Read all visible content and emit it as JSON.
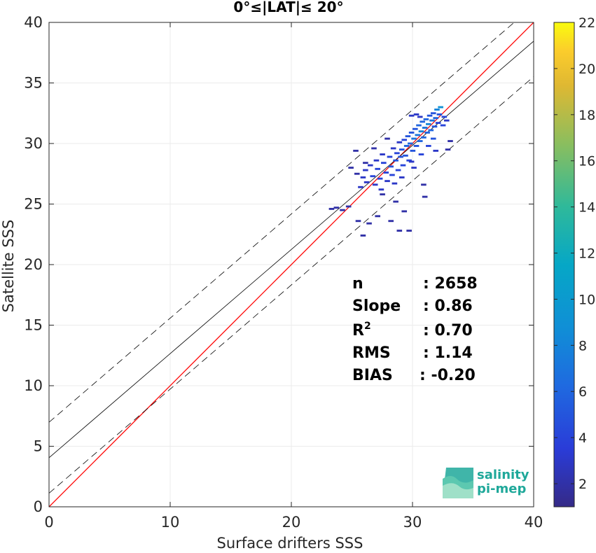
{
  "chart_data": {
    "type": "scatter",
    "title": "0°≤|LAT|≤ 20°",
    "xlabel": "Surface drifters SSS",
    "ylabel": "Satellite SSS",
    "xlim": [
      0,
      40
    ],
    "ylim": [
      0,
      40
    ],
    "xticks": [
      0,
      10,
      20,
      30,
      40
    ],
    "yticks": [
      0,
      5,
      10,
      15,
      20,
      25,
      30,
      35,
      40
    ],
    "grid": true,
    "colorbar": {
      "label": "",
      "range": [
        1,
        22
      ],
      "ticks": [
        2,
        4,
        6,
        8,
        10,
        12,
        14,
        16,
        18,
        20,
        22
      ],
      "colormap": "parula"
    },
    "lines": [
      {
        "name": "1:1",
        "slope": 1.0,
        "intercept": 0.0,
        "color": "#ff0000",
        "style": "solid"
      },
      {
        "name": "fit",
        "slope": 0.86,
        "intercept": 4.05,
        "color": "#000000",
        "style": "solid"
      },
      {
        "name": "fit_upper",
        "slope": 0.86,
        "intercept": 6.98,
        "color": "#000000",
        "style": "dashed"
      },
      {
        "name": "fit_lower",
        "slope": 0.86,
        "intercept": 1.12,
        "color": "#000000",
        "style": "dashed"
      }
    ],
    "density_points": [
      {
        "x": 23.2,
        "y": 24.6,
        "c": 2
      },
      {
        "x": 23.6,
        "y": 24.7,
        "c": 2
      },
      {
        "x": 24.1,
        "y": 24.5,
        "c": 2
      },
      {
        "x": 24.6,
        "y": 24.8,
        "c": 2
      },
      {
        "x": 25.8,
        "y": 22.4,
        "c": 2
      },
      {
        "x": 25.4,
        "y": 23.6,
        "c": 2
      },
      {
        "x": 26.3,
        "y": 23.4,
        "c": 2
      },
      {
        "x": 25.6,
        "y": 26.4,
        "c": 3
      },
      {
        "x": 25.8,
        "y": 27.2,
        "c": 3
      },
      {
        "x": 26.0,
        "y": 27.8,
        "c": 3
      },
      {
        "x": 26.1,
        "y": 26.8,
        "c": 3
      },
      {
        "x": 26.4,
        "y": 28.2,
        "c": 3
      },
      {
        "x": 26.6,
        "y": 27.3,
        "c": 4
      },
      {
        "x": 26.8,
        "y": 26.6,
        "c": 3
      },
      {
        "x": 26.9,
        "y": 28.6,
        "c": 3
      },
      {
        "x": 27.0,
        "y": 27.9,
        "c": 4
      },
      {
        "x": 27.2,
        "y": 27.1,
        "c": 4
      },
      {
        "x": 27.3,
        "y": 26.2,
        "c": 3
      },
      {
        "x": 27.4,
        "y": 29.1,
        "c": 3
      },
      {
        "x": 27.5,
        "y": 28.4,
        "c": 4
      },
      {
        "x": 27.7,
        "y": 27.6,
        "c": 4
      },
      {
        "x": 27.8,
        "y": 26.9,
        "c": 3
      },
      {
        "x": 28.0,
        "y": 28.9,
        "c": 4
      },
      {
        "x": 28.1,
        "y": 28.1,
        "c": 5
      },
      {
        "x": 28.2,
        "y": 27.4,
        "c": 4
      },
      {
        "x": 28.3,
        "y": 29.6,
        "c": 3
      },
      {
        "x": 28.4,
        "y": 26.7,
        "c": 3
      },
      {
        "x": 28.5,
        "y": 28.6,
        "c": 5
      },
      {
        "x": 28.6,
        "y": 29.2,
        "c": 4
      },
      {
        "x": 28.7,
        "y": 27.8,
        "c": 4
      },
      {
        "x": 28.8,
        "y": 30.1,
        "c": 3
      },
      {
        "x": 28.9,
        "y": 28.9,
        "c": 5
      },
      {
        "x": 29.0,
        "y": 29.5,
        "c": 5
      },
      {
        "x": 29.1,
        "y": 28.2,
        "c": 4
      },
      {
        "x": 29.2,
        "y": 30.3,
        "c": 4
      },
      {
        "x": 29.3,
        "y": 29.0,
        "c": 5
      },
      {
        "x": 29.4,
        "y": 29.8,
        "c": 6
      },
      {
        "x": 29.5,
        "y": 30.6,
        "c": 5
      },
      {
        "x": 29.6,
        "y": 28.6,
        "c": 4
      },
      {
        "x": 29.7,
        "y": 30.0,
        "c": 6
      },
      {
        "x": 29.8,
        "y": 30.9,
        "c": 5
      },
      {
        "x": 29.9,
        "y": 29.4,
        "c": 5
      },
      {
        "x": 30.0,
        "y": 30.4,
        "c": 7
      },
      {
        "x": 30.1,
        "y": 31.2,
        "c": 5
      },
      {
        "x": 30.2,
        "y": 29.8,
        "c": 5
      },
      {
        "x": 30.3,
        "y": 30.7,
        "c": 7
      },
      {
        "x": 30.4,
        "y": 31.5,
        "c": 6
      },
      {
        "x": 30.5,
        "y": 30.2,
        "c": 6
      },
      {
        "x": 30.6,
        "y": 31.0,
        "c": 8
      },
      {
        "x": 30.7,
        "y": 31.8,
        "c": 6
      },
      {
        "x": 30.8,
        "y": 30.5,
        "c": 6
      },
      {
        "x": 30.9,
        "y": 31.3,
        "c": 7
      },
      {
        "x": 31.0,
        "y": 32.0,
        "c": 6
      },
      {
        "x": 31.1,
        "y": 30.9,
        "c": 6
      },
      {
        "x": 31.2,
        "y": 31.6,
        "c": 8
      },
      {
        "x": 31.3,
        "y": 32.3,
        "c": 5
      },
      {
        "x": 31.4,
        "y": 31.1,
        "c": 6
      },
      {
        "x": 31.5,
        "y": 31.9,
        "c": 7
      },
      {
        "x": 31.6,
        "y": 32.5,
        "c": 5
      },
      {
        "x": 31.7,
        "y": 31.4,
        "c": 5
      },
      {
        "x": 31.8,
        "y": 32.1,
        "c": 6
      },
      {
        "x": 31.9,
        "y": 32.8,
        "c": 8
      },
      {
        "x": 32.0,
        "y": 31.7,
        "c": 4
      },
      {
        "x": 32.1,
        "y": 32.4,
        "c": 5
      },
      {
        "x": 32.2,
        "y": 33.0,
        "c": 9
      },
      {
        "x": 32.4,
        "y": 31.5,
        "c": 4
      },
      {
        "x": 32.5,
        "y": 32.2,
        "c": 4
      },
      {
        "x": 32.7,
        "y": 31.9,
        "c": 3
      },
      {
        "x": 33.0,
        "y": 30.2,
        "c": 2
      },
      {
        "x": 30.2,
        "y": 32.4,
        "c": 3
      },
      {
        "x": 30.5,
        "y": 32.2,
        "c": 3
      },
      {
        "x": 29.8,
        "y": 32.3,
        "c": 3
      },
      {
        "x": 29.0,
        "y": 27.2,
        "c": 3
      },
      {
        "x": 29.8,
        "y": 28.5,
        "c": 3
      },
      {
        "x": 30.6,
        "y": 29.1,
        "c": 4
      },
      {
        "x": 31.2,
        "y": 29.8,
        "c": 4
      },
      {
        "x": 31.6,
        "y": 30.4,
        "c": 5
      },
      {
        "x": 30.8,
        "y": 26.6,
        "c": 2
      },
      {
        "x": 30.9,
        "y": 25.6,
        "c": 2
      },
      {
        "x": 27.4,
        "y": 25.8,
        "c": 2
      },
      {
        "x": 28.5,
        "y": 25.2,
        "c": 2
      },
      {
        "x": 29.2,
        "y": 24.4,
        "c": 2
      },
      {
        "x": 27.0,
        "y": 24.0,
        "c": 2
      },
      {
        "x": 28.1,
        "y": 23.6,
        "c": 2
      },
      {
        "x": 28.8,
        "y": 22.8,
        "c": 2
      },
      {
        "x": 29.6,
        "y": 22.8,
        "c": 2
      },
      {
        "x": 26.7,
        "y": 29.6,
        "c": 2
      },
      {
        "x": 26.0,
        "y": 28.4,
        "c": 2
      },
      {
        "x": 25.3,
        "y": 27.5,
        "c": 2
      },
      {
        "x": 25.2,
        "y": 29.4,
        "c": 2
      },
      {
        "x": 24.8,
        "y": 28.0,
        "c": 2
      },
      {
        "x": 32.8,
        "y": 29.5,
        "c": 2
      },
      {
        "x": 27.8,
        "y": 30.4,
        "c": 2
      },
      {
        "x": 30.0,
        "y": 28.0,
        "c": 3
      },
      {
        "x": 31.8,
        "y": 29.4,
        "c": 3
      }
    ],
    "stats": [
      {
        "label": "n",
        "value": ": 2658"
      },
      {
        "label": "Slope",
        "value": ": 0.86"
      },
      {
        "label": "R",
        "sup": "2",
        "value": ": 0.70"
      },
      {
        "label": "RMS",
        "value": ": 1.14"
      },
      {
        "label": "BIAS",
        "value": ": -0.20"
      }
    ]
  },
  "logo": {
    "line1": "salinity",
    "line2": "pi-mep"
  },
  "colors": {
    "one_to_one": "#ff0000",
    "fit": "#000000",
    "grid": "#ebebeb",
    "axis": "#262626",
    "logo_text": "#1fa89a"
  }
}
